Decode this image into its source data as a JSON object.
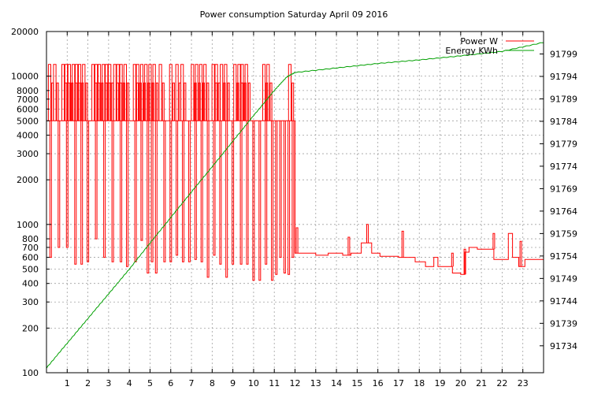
{
  "chart_data": {
    "type": "line",
    "title": "Power consumption Saturday April 09 2016",
    "xlabel": "",
    "ylabel": "",
    "y2label": "",
    "x_ticks": [
      1,
      2,
      3,
      4,
      5,
      6,
      7,
      8,
      9,
      10,
      11,
      12,
      13,
      14,
      15,
      16,
      17,
      18,
      19,
      20,
      21,
      22,
      23
    ],
    "xlim": [
      0,
      24
    ],
    "y_scale": "log",
    "ylim": [
      100,
      20000
    ],
    "y_ticks": [
      100,
      200,
      300,
      400,
      500,
      600,
      700,
      800,
      1000,
      2000,
      3000,
      4000,
      5000,
      6000,
      7000,
      8000,
      10000,
      20000
    ],
    "y2lim": [
      91728,
      91804
    ],
    "y2_ticks": [
      91734,
      91739,
      91744,
      91749,
      91754,
      91759,
      91764,
      91769,
      91774,
      91779,
      91784,
      91789,
      91794,
      91799
    ],
    "grid": true,
    "legend_position": "top-right",
    "series": [
      {
        "name": "Power W",
        "color": "#ff0000",
        "axis": "y",
        "base_segments": [
          {
            "from": 0.0,
            "to": 12.0,
            "value": 5000
          },
          {
            "from": 12.0,
            "to": 13.0,
            "value": 640
          },
          {
            "from": 13.0,
            "to": 13.6,
            "value": 620
          },
          {
            "from": 13.6,
            "to": 14.3,
            "value": 640
          },
          {
            "from": 14.3,
            "to": 14.7,
            "value": 620
          },
          {
            "from": 14.7,
            "to": 15.2,
            "value": 640
          },
          {
            "from": 15.2,
            "to": 15.7,
            "value": 750
          },
          {
            "from": 15.7,
            "to": 16.1,
            "value": 640
          },
          {
            "from": 16.1,
            "to": 17.0,
            "value": 610
          },
          {
            "from": 17.0,
            "to": 17.8,
            "value": 600
          },
          {
            "from": 17.8,
            "to": 18.3,
            "value": 560
          },
          {
            "from": 18.3,
            "to": 18.7,
            "value": 520
          },
          {
            "from": 18.7,
            "to": 18.9,
            "value": 600
          },
          {
            "from": 18.9,
            "to": 19.3,
            "value": 520
          },
          {
            "from": 19.3,
            "to": 19.6,
            "value": 520
          },
          {
            "from": 19.6,
            "to": 20.0,
            "value": 470
          },
          {
            "from": 20.0,
            "to": 20.2,
            "value": 460
          },
          {
            "from": 20.2,
            "to": 20.4,
            "value": 650
          },
          {
            "from": 20.4,
            "to": 20.8,
            "value": 700
          },
          {
            "from": 20.8,
            "to": 21.6,
            "value": 680
          },
          {
            "from": 21.6,
            "to": 22.3,
            "value": 580
          },
          {
            "from": 22.3,
            "to": 22.5,
            "value": 870
          },
          {
            "from": 22.5,
            "to": 22.8,
            "value": 600
          },
          {
            "from": 22.8,
            "to": 23.1,
            "value": 520
          },
          {
            "from": 23.1,
            "to": 24.0,
            "value": 580
          }
        ],
        "high_spikes": [
          0.15,
          0.4,
          0.8,
          0.95,
          1.1,
          1.3,
          1.45,
          1.6,
          1.8,
          2.25,
          2.4,
          2.55,
          2.75,
          2.9,
          3.05,
          3.3,
          3.45,
          3.6,
          3.8,
          4.25,
          4.4,
          4.6,
          4.8,
          5.0,
          5.2,
          5.5,
          6.0,
          6.3,
          6.55,
          7.05,
          7.25,
          7.45,
          7.65,
          8.05,
          8.2,
          8.45,
          8.65,
          9.1,
          9.3,
          9.45,
          9.65,
          10.5,
          10.7,
          11.75
        ],
        "high_spike_value": 12000,
        "dips": [
          {
            "x": 0.2,
            "value": 600
          },
          {
            "x": 0.6,
            "value": 700
          },
          {
            "x": 1.0,
            "value": 700
          },
          {
            "x": 1.4,
            "value": 540
          },
          {
            "x": 1.7,
            "value": 540
          },
          {
            "x": 2.0,
            "value": 560
          },
          {
            "x": 2.4,
            "value": 800
          },
          {
            "x": 2.8,
            "value": 600
          },
          {
            "x": 3.2,
            "value": 560
          },
          {
            "x": 3.6,
            "value": 560
          },
          {
            "x": 3.9,
            "value": 520
          },
          {
            "x": 4.3,
            "value": 560
          },
          {
            "x": 4.6,
            "value": 780
          },
          {
            "x": 4.9,
            "value": 470
          },
          {
            "x": 5.1,
            "value": 560
          },
          {
            "x": 5.3,
            "value": 470
          },
          {
            "x": 5.7,
            "value": 560
          },
          {
            "x": 6.0,
            "value": 560
          },
          {
            "x": 6.3,
            "value": 620
          },
          {
            "x": 6.6,
            "value": 560
          },
          {
            "x": 6.9,
            "value": 560
          },
          {
            "x": 7.2,
            "value": 580
          },
          {
            "x": 7.5,
            "value": 560
          },
          {
            "x": 7.8,
            "value": 440
          },
          {
            "x": 8.1,
            "value": 620
          },
          {
            "x": 8.4,
            "value": 540
          },
          {
            "x": 8.7,
            "value": 440
          },
          {
            "x": 9.0,
            "value": 540
          },
          {
            "x": 9.4,
            "value": 540
          },
          {
            "x": 9.7,
            "value": 540
          },
          {
            "x": 10.0,
            "value": 420
          },
          {
            "x": 10.3,
            "value": 420
          },
          {
            "x": 10.6,
            "value": 540
          },
          {
            "x": 10.9,
            "value": 420
          },
          {
            "x": 11.1,
            "value": 460
          },
          {
            "x": 11.3,
            "value": 600
          },
          {
            "x": 11.5,
            "value": 470
          },
          {
            "x": 11.7,
            "value": 460
          },
          {
            "x": 11.9,
            "value": 600
          }
        ],
        "spikes_after_noon": [
          {
            "x": 12.1,
            "value": 950
          },
          {
            "x": 14.6,
            "value": 820
          },
          {
            "x": 15.5,
            "value": 1000
          },
          {
            "x": 17.2,
            "value": 900
          },
          {
            "x": 19.6,
            "value": 640
          },
          {
            "x": 20.2,
            "value": 680
          },
          {
            "x": 21.6,
            "value": 870
          },
          {
            "x": 22.9,
            "value": 770
          }
        ]
      },
      {
        "name": "Energy KWh",
        "color": "#00a000",
        "axis": "y2",
        "x": [
          0,
          1,
          2,
          3,
          4,
          5,
          6,
          7,
          8,
          9,
          10,
          11,
          11.6,
          12,
          14,
          16,
          18,
          20,
          22,
          24
        ],
        "values": [
          91729,
          91734.5,
          91740,
          91745.5,
          91751,
          91756.8,
          91762.5,
          91768.2,
          91773.8,
          91779.5,
          91785.2,
          91790.8,
          91793.8,
          91794.8,
          91795.8,
          91796.8,
          91797.6,
          91798.5,
          91799.5,
          91801.5
        ]
      }
    ]
  }
}
